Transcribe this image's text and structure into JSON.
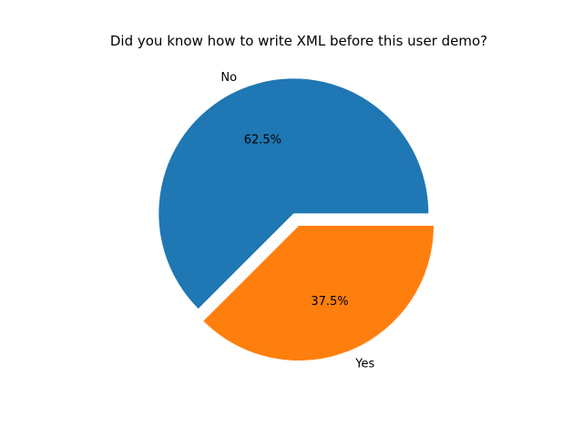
{
  "chart_data": {
    "type": "pie",
    "title": "Did you know how to write XML before this user demo?",
    "categories": [
      "No",
      "Yes"
    ],
    "values": [
      62.5,
      37.5
    ],
    "value_labels": [
      "62.5%",
      "37.5%"
    ],
    "colors": [
      "#1f77b4",
      "#ff7f0e"
    ],
    "exploded": [
      "No"
    ],
    "legend": "none"
  }
}
